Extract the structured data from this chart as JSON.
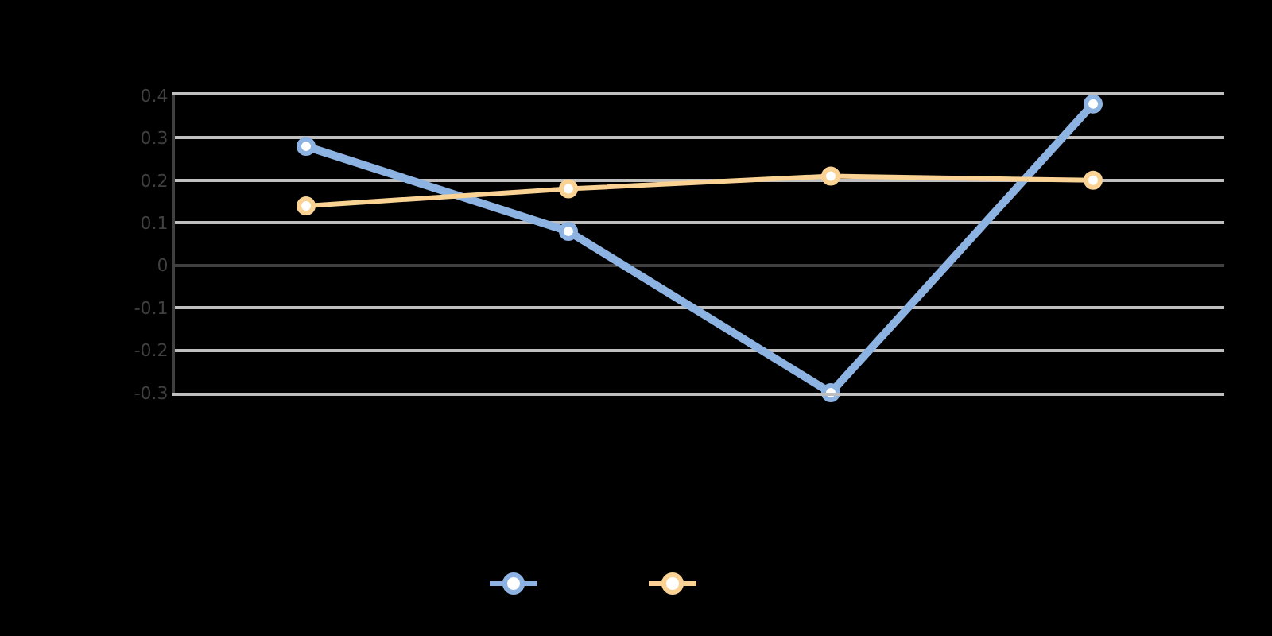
{
  "chart_data": {
    "type": "line",
    "categories": [
      null,
      null,
      null,
      null
    ],
    "series": [
      {
        "color": "#8db3e2",
        "values": [
          0.28,
          0.08,
          -0.3,
          0.38
        ]
      },
      {
        "color": "#fad394",
        "values": [
          0.14,
          0.18,
          0.21,
          0.2
        ]
      }
    ],
    "ylim": [
      -0.3,
      0.4
    ],
    "yticks": [
      0.4,
      0.3,
      0.2,
      0.1,
      0,
      -0.1,
      -0.2,
      -0.3
    ],
    "grid": "y",
    "marker": "circle",
    "line_style": "solid"
  }
}
